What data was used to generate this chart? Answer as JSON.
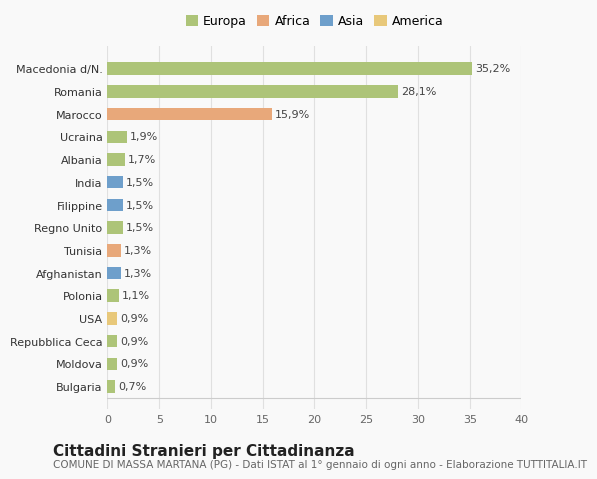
{
  "categories": [
    "Bulgaria",
    "Moldova",
    "Repubblica Ceca",
    "USA",
    "Polonia",
    "Afghanistan",
    "Tunisia",
    "Regno Unito",
    "Filippine",
    "India",
    "Albania",
    "Ucraina",
    "Marocco",
    "Romania",
    "Macedonia d/N."
  ],
  "values": [
    0.7,
    0.9,
    0.9,
    0.9,
    1.1,
    1.3,
    1.3,
    1.5,
    1.5,
    1.5,
    1.7,
    1.9,
    15.9,
    28.1,
    35.2
  ],
  "labels": [
    "0,7%",
    "0,9%",
    "0,9%",
    "0,9%",
    "1,1%",
    "1,3%",
    "1,3%",
    "1,5%",
    "1,5%",
    "1,5%",
    "1,7%",
    "1,9%",
    "15,9%",
    "28,1%",
    "35,2%"
  ],
  "colors": [
    "#adc478",
    "#adc478",
    "#adc478",
    "#e8c87a",
    "#adc478",
    "#6e9fcb",
    "#e8a87a",
    "#adc478",
    "#6e9fcb",
    "#6e9fcb",
    "#adc478",
    "#adc478",
    "#e8a87a",
    "#adc478",
    "#adc478"
  ],
  "legend_labels": [
    "Europa",
    "Africa",
    "Asia",
    "America"
  ],
  "legend_colors": [
    "#adc478",
    "#e8a87a",
    "#6e9fcb",
    "#e8c87a"
  ],
  "title": "Cittadini Stranieri per Cittadinanza",
  "subtitle": "COMUNE DI MASSA MARTANA (PG) - Dati ISTAT al 1° gennaio di ogni anno - Elaborazione TUTTITALIA.IT",
  "xlim": [
    0,
    40
  ],
  "xticks": [
    0,
    5,
    10,
    15,
    20,
    25,
    30,
    35,
    40
  ],
  "background_color": "#f9f9f9",
  "grid_color": "#e0e0e0",
  "bar_height": 0.55,
  "title_fontsize": 11,
  "subtitle_fontsize": 7.5,
  "label_fontsize": 8,
  "tick_fontsize": 8,
  "legend_fontsize": 9
}
